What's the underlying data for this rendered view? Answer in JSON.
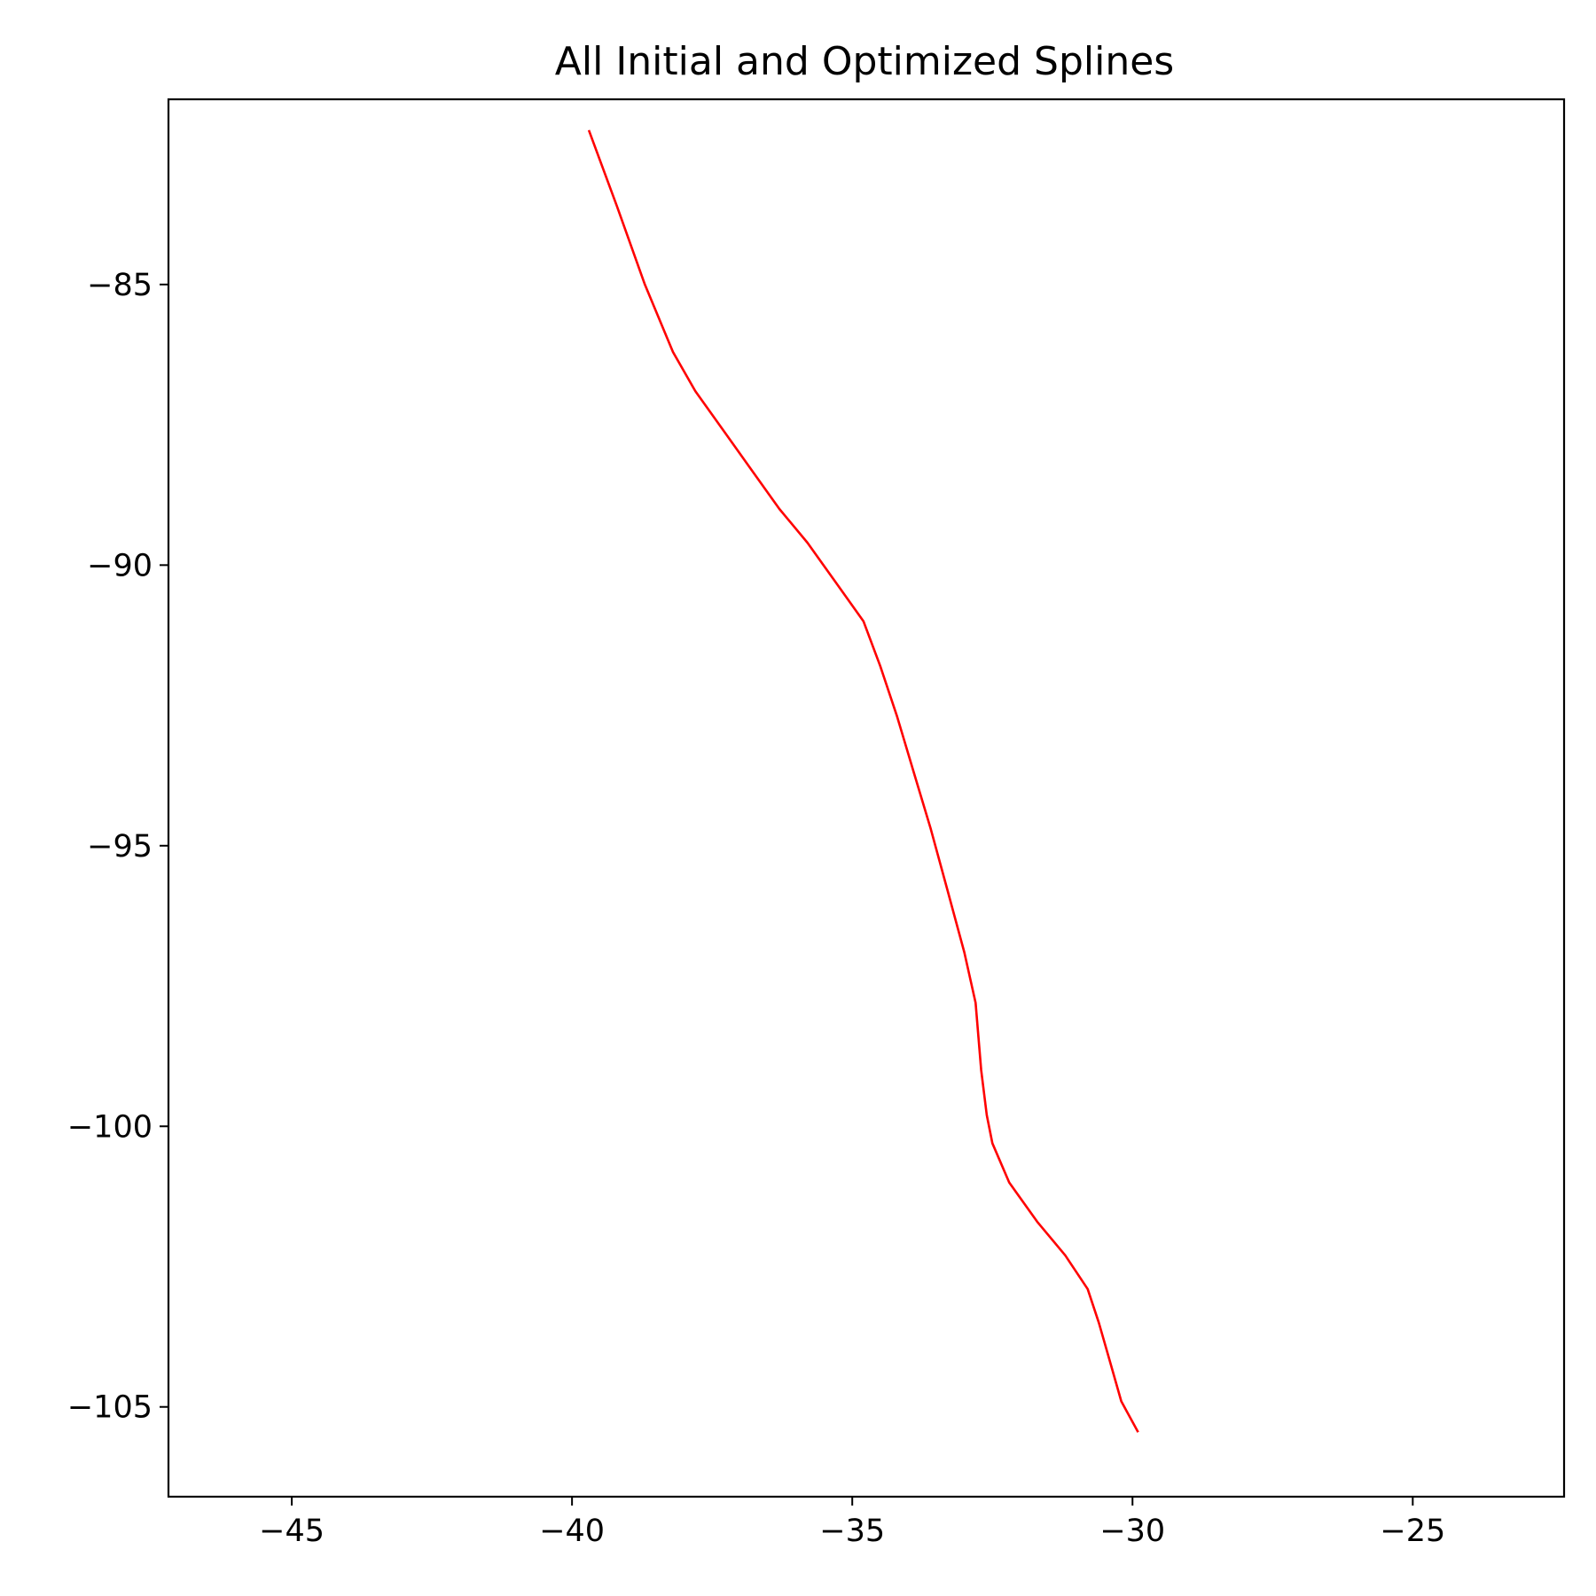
{
  "chart_data": {
    "type": "line",
    "title": "All Initial and Optimized Splines",
    "xlabel": "",
    "ylabel": "",
    "xlim": [
      -47.2,
      -22.3
    ],
    "ylim": [
      -106.6,
      -81.7
    ],
    "x_ticks": [
      -45,
      -40,
      -35,
      -30,
      -25
    ],
    "y_ticks": [
      -85,
      -90,
      -95,
      -100,
      -105
    ],
    "x_tick_labels": [
      "−45",
      "−40",
      "−35",
      "−30",
      "−25"
    ],
    "y_tick_labels": [
      "−85",
      "−90",
      "−95",
      "−100",
      "−105"
    ],
    "grid": false,
    "legend": "none",
    "series": [
      {
        "role": "initial",
        "color": "#cccccc",
        "dashed": true,
        "x": [
          -39.7,
          -39.2,
          -38.7,
          -38.2,
          -37.8,
          -37.3,
          -36.8,
          -36.3,
          -35.8,
          -35.3,
          -34.8,
          -34.5,
          -34.2,
          -33.9,
          -33.6,
          -33.3,
          -33.0,
          -32.8,
          -32.7,
          -32.6,
          -32.5,
          -32.2,
          -31.7,
          -31.2,
          -30.8,
          -30.6,
          -30.4,
          -30.2,
          -29.9
        ],
        "y": [
          -82.25,
          -83.6,
          -85.0,
          -86.2,
          -86.9,
          -87.6,
          -88.3,
          -89.0,
          -89.6,
          -90.3,
          -91.0,
          -91.8,
          -92.7,
          -93.7,
          -94.7,
          -95.8,
          -96.9,
          -97.8,
          -99.0,
          -99.8,
          -100.3,
          -101.0,
          -101.7,
          -102.3,
          -102.9,
          -103.5,
          -104.2,
          -104.9,
          -105.45
        ]
      },
      {
        "role": "optimized",
        "color": "#ff0000",
        "dashed": false,
        "x": [
          -39.7,
          -39.2,
          -38.7,
          -38.2,
          -37.8,
          -37.3,
          -36.8,
          -36.3,
          -35.8,
          -35.3,
          -34.8,
          -34.5,
          -34.2,
          -33.9,
          -33.6,
          -33.3,
          -33.0,
          -32.8,
          -32.7,
          -32.6,
          -32.5,
          -32.2,
          -31.7,
          -31.2,
          -30.8,
          -30.6,
          -30.4,
          -30.2,
          -29.9
        ],
        "y": [
          -82.25,
          -83.6,
          -85.0,
          -86.2,
          -86.9,
          -87.6,
          -88.3,
          -89.0,
          -89.6,
          -90.3,
          -91.0,
          -91.8,
          -92.7,
          -93.7,
          -94.7,
          -95.8,
          -96.9,
          -97.8,
          -99.0,
          -99.8,
          -100.3,
          -101.0,
          -101.7,
          -102.3,
          -102.9,
          -103.5,
          -104.2,
          -104.9,
          -105.45
        ]
      }
    ]
  }
}
